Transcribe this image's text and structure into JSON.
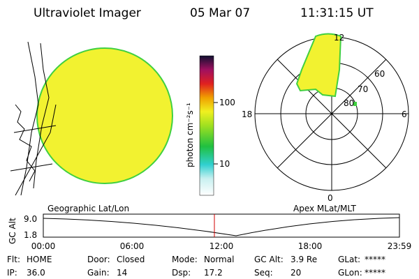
{
  "header": {
    "title": "Ultraviolet Imager",
    "date": "05 Mar 07",
    "time": "11:31:15 UT"
  },
  "colorbar": {
    "label": "photon cm⁻²s⁻¹",
    "ticks": [
      "100",
      "10"
    ]
  },
  "polar": {
    "mlt_labels": [
      "12",
      "18",
      "6",
      "0"
    ],
    "lat_labels": [
      "60",
      "70",
      "80"
    ]
  },
  "captions": {
    "left": "Geographic Lat/Lon",
    "right": "Apex MLat/MLT"
  },
  "timeline": {
    "ylabel": "GC Alt",
    "yticks": [
      "9.0",
      "1.8"
    ],
    "xticks": [
      "00:00",
      "06:00",
      "12:00",
      "18:00",
      "23:59"
    ]
  },
  "status": {
    "rows": [
      [
        {
          "label": "Flt:",
          "value": "HOME"
        },
        {
          "label": "Door:",
          "value": "Closed"
        },
        {
          "label": "Mode:",
          "value": "Normal"
        },
        {
          "label": "GC Alt:",
          "value": "3.9 Re"
        },
        {
          "label": "GLat:",
          "value": "*****"
        }
      ],
      [
        {
          "label": "IP:",
          "value": "36.0"
        },
        {
          "label": "Gain:",
          "value": "14"
        },
        {
          "label": "Dsp:",
          "value": "17.2"
        },
        {
          "label": "Seq:",
          "value": "20"
        },
        {
          "label": "GLon:",
          "value": "*****"
        }
      ]
    ]
  }
}
